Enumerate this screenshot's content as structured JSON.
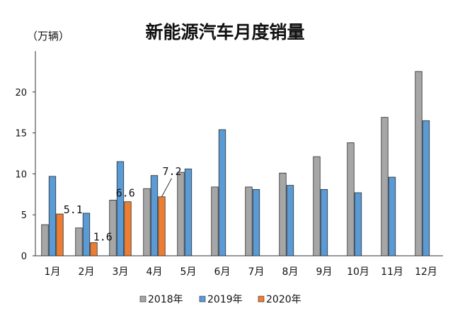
{
  "chart_data": {
    "type": "bar",
    "title": "新能源汽车月度销量",
    "unit_label": "（万辆）",
    "categories": [
      "1月",
      "2月",
      "3月",
      "4月",
      "5月",
      "6月",
      "7月",
      "8月",
      "9月",
      "10月",
      "11月",
      "12月"
    ],
    "series": [
      {
        "name": "2018年",
        "color": "#a6a6a6",
        "values": [
          3.8,
          3.4,
          6.8,
          8.2,
          10.2,
          8.4,
          8.4,
          10.1,
          12.1,
          13.8,
          16.9,
          22.5
        ]
      },
      {
        "name": "2019年",
        "color": "#5b9bd5",
        "values": [
          9.7,
          5.2,
          11.5,
          9.8,
          10.6,
          15.4,
          8.1,
          8.6,
          8.1,
          7.7,
          9.6,
          16.5
        ]
      },
      {
        "name": "2020年",
        "color": "#ed7d31",
        "values": [
          5.1,
          1.6,
          6.6,
          7.2,
          null,
          null,
          null,
          null,
          null,
          null,
          null,
          null
        ]
      }
    ],
    "data_labels": [
      {
        "series": 2,
        "index": 0,
        "text": "5.1"
      },
      {
        "series": 2,
        "index": 1,
        "text": "1.6"
      },
      {
        "series": 2,
        "index": 2,
        "text": "6.6"
      },
      {
        "series": 2,
        "index": 3,
        "text": "7.2"
      }
    ],
    "ylim": [
      0,
      25
    ],
    "yticks": [
      0,
      5,
      10,
      15,
      20
    ],
    "grid": false,
    "legend_position": "bottom"
  }
}
